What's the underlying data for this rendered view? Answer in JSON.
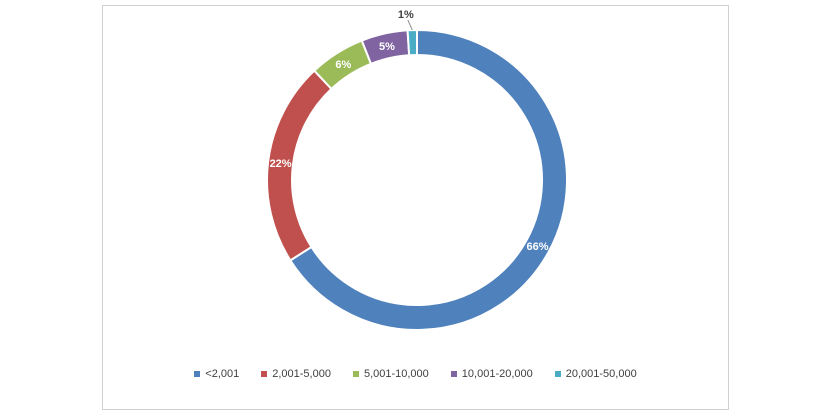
{
  "chart_data": {
    "type": "pie",
    "variant": "donut",
    "title": "",
    "categories": [
      "<2,001",
      "2,001-5,000",
      "5,001-10,000",
      "10,001-20,000",
      "20,001-50,000"
    ],
    "values": [
      66,
      22,
      6,
      5,
      1
    ],
    "labels": [
      "66%",
      "22%",
      "6%",
      "5%",
      "1%"
    ],
    "colors": [
      "#4F81BD",
      "#C0504D",
      "#9BBB59",
      "#8064A2",
      "#4BACC6"
    ],
    "legend_position": "bottom"
  }
}
